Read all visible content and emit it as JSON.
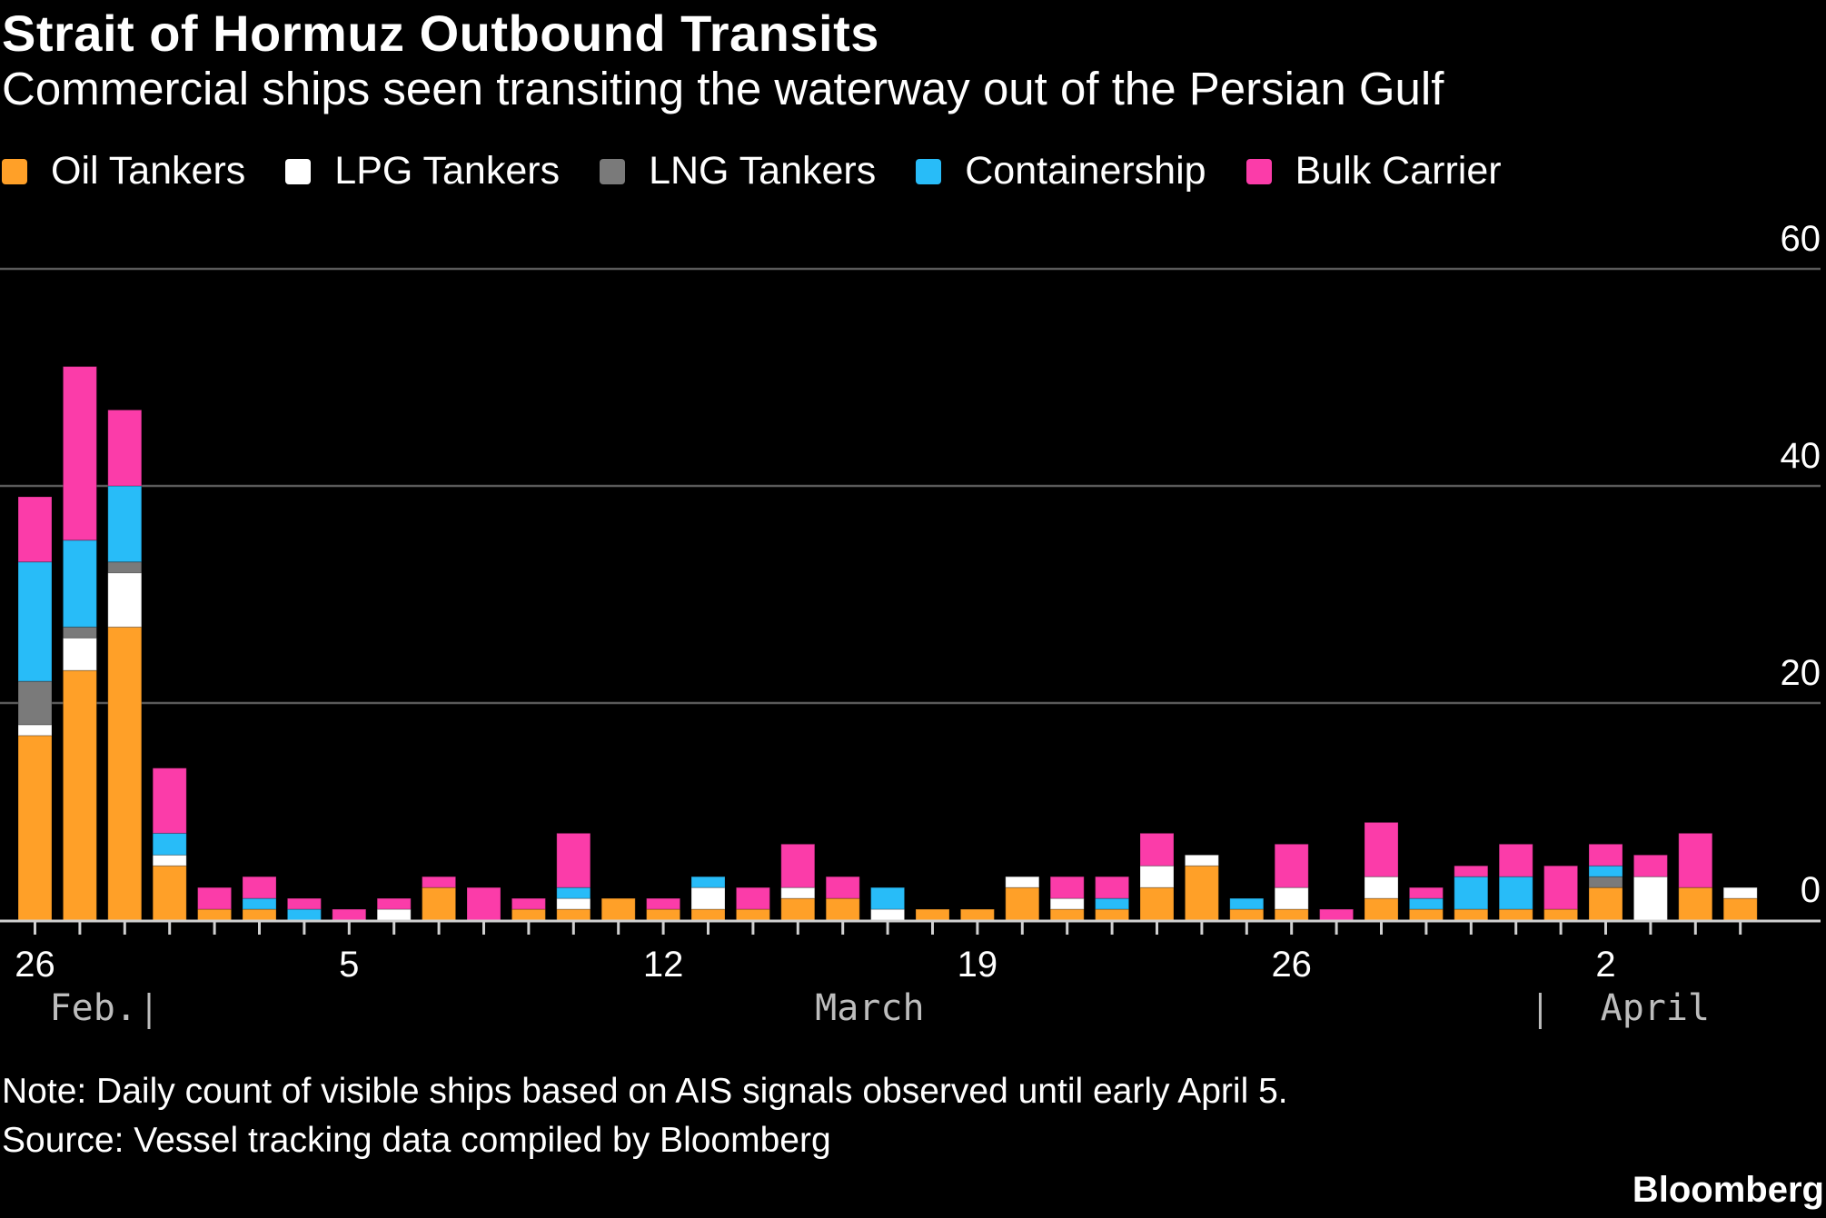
{
  "chart_data": {
    "type": "bar",
    "stacked": true,
    "title": "Strait of Hormuz Outbound Transits",
    "subtitle": "Commercial ships seen transiting the waterway out of the Persian Gulf",
    "categories": [
      "Feb 26",
      "Feb 27",
      "Feb 28",
      "Mar 1",
      "Mar 2",
      "Mar 3",
      "Mar 4",
      "Mar 5",
      "Mar 6",
      "Mar 7",
      "Mar 8",
      "Mar 9",
      "Mar 10",
      "Mar 11",
      "Mar 12",
      "Mar 13",
      "Mar 14",
      "Mar 15",
      "Mar 16",
      "Mar 17",
      "Mar 18",
      "Mar 19",
      "Mar 20",
      "Mar 21",
      "Mar 22",
      "Mar 23",
      "Mar 24",
      "Mar 25",
      "Mar 26",
      "Mar 27",
      "Mar 28",
      "Mar 29",
      "Mar 30",
      "Mar 31",
      "Apr 1",
      "Apr 2",
      "Apr 3",
      "Apr 4",
      "Apr 5"
    ],
    "series": [
      {
        "name": "Oil Tankers",
        "color": "#ffa028",
        "values": [
          17,
          23,
          27,
          5,
          1,
          1,
          0,
          0,
          0,
          3,
          0,
          1,
          1,
          2,
          1,
          1,
          1,
          2,
          2,
          0,
          1,
          1,
          3,
          1,
          1,
          3,
          5,
          1,
          1,
          0,
          2,
          1,
          1,
          1,
          1,
          3,
          0,
          3,
          2
        ]
      },
      {
        "name": "LPG Tankers",
        "color": "#ffffff",
        "values": [
          1,
          3,
          5,
          1,
          0,
          0,
          0,
          0,
          1,
          0,
          0,
          0,
          1,
          0,
          0,
          2,
          0,
          1,
          0,
          1,
          0,
          0,
          1,
          1,
          0,
          2,
          1,
          0,
          2,
          0,
          2,
          0,
          0,
          0,
          0,
          0,
          4,
          0,
          1
        ]
      },
      {
        "name": "LNG Tankers",
        "color": "#7a7a7a",
        "values": [
          4,
          1,
          1,
          0,
          0,
          0,
          0,
          0,
          0,
          0,
          0,
          0,
          0,
          0,
          0,
          0,
          0,
          0,
          0,
          0,
          0,
          0,
          0,
          0,
          0,
          0,
          0,
          0,
          0,
          0,
          0,
          0,
          0,
          0,
          0,
          1,
          0,
          0,
          0
        ]
      },
      {
        "name": "Containership",
        "color": "#28bcf8",
        "values": [
          11,
          8,
          7,
          2,
          0,
          1,
          1,
          0,
          0,
          0,
          0,
          0,
          1,
          0,
          0,
          1,
          0,
          0,
          0,
          2,
          0,
          0,
          0,
          0,
          1,
          0,
          0,
          1,
          0,
          0,
          0,
          1,
          3,
          3,
          0,
          1,
          0,
          0,
          0
        ]
      },
      {
        "name": "Bulk Carrier",
        "color": "#fb3ca9",
        "values": [
          6,
          16,
          7,
          6,
          2,
          2,
          1,
          1,
          1,
          1,
          3,
          1,
          5,
          0,
          1,
          0,
          2,
          4,
          2,
          0,
          0,
          0,
          0,
          2,
          2,
          3,
          0,
          0,
          4,
          1,
          5,
          1,
          1,
          3,
          4,
          2,
          2,
          5,
          0
        ]
      }
    ],
    "ylim": [
      0,
      60
    ],
    "yticks": [
      "0",
      "20",
      "40",
      "60"
    ],
    "y_axis_position": "right",
    "grid": true,
    "xtick_labels": [
      {
        "day": "26",
        "index": 0
      },
      {
        "day": "5",
        "index": 7
      },
      {
        "day": "12",
        "index": 14
      },
      {
        "day": "19",
        "index": 21
      },
      {
        "day": "26",
        "index": 28
      },
      {
        "day": "2",
        "index": 35
      }
    ],
    "month_labels": [
      {
        "label": "Feb.",
        "index": 1.3
      },
      {
        "label": "March",
        "index": 18.6
      },
      {
        "label": "April",
        "index": 36.1
      }
    ],
    "month_separators": [
      3,
      34
    ],
    "legend_position": "top-left",
    "note": "Note: Daily count of visible ships based on AIS signals observed until early April 5.",
    "source": "Source: Vessel tracking data compiled by Bloomberg",
    "brand": "Bloomberg"
  }
}
